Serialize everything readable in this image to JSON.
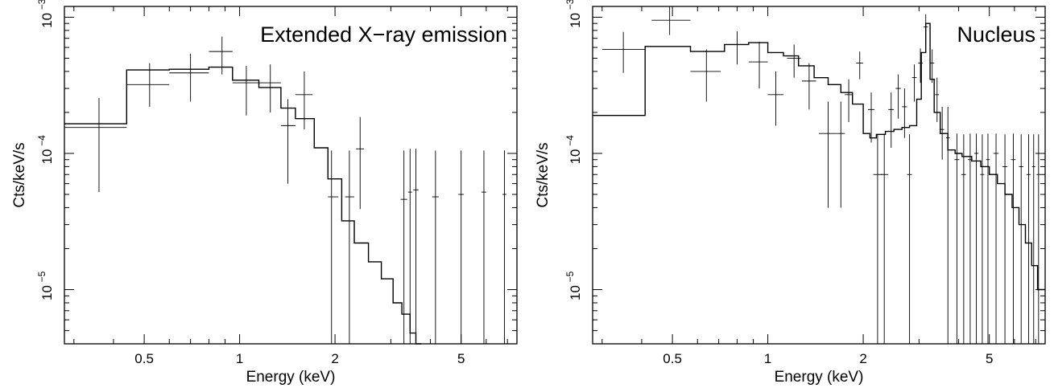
{
  "chart_data": [
    {
      "type": "line",
      "title": "Extended X−ray emission",
      "xlabel": "Energy (keV)",
      "ylabel": "Cts/keV/s",
      "xscale": "log",
      "yscale": "log",
      "xlim": [
        0.28,
        7.5
      ],
      "ylim": [
        4e-06,
        0.0012
      ],
      "xticks": [
        {
          "value": 0.5,
          "label": "0.5"
        },
        {
          "value": 1,
          "label": "1"
        },
        {
          "value": 2,
          "label": "2"
        },
        {
          "value": 5,
          "label": "5"
        }
      ],
      "yticks": [
        {
          "value": 1e-05,
          "base": "10",
          "exp": "−5"
        },
        {
          "value": 0.0001,
          "base": "10",
          "exp": "−4"
        },
        {
          "value": 0.001,
          "base": "10",
          "exp": "−3"
        }
      ],
      "series": [
        {
          "kind": "model-step",
          "edges": [
            0.28,
            0.44,
            0.6,
            0.8,
            0.95,
            1.15,
            1.35,
            1.5,
            1.72,
            1.9,
            2.1,
            2.3,
            2.55,
            2.8,
            3.05,
            3.25,
            3.45,
            3.6,
            3.75
          ],
          "values": [
            0.000165,
            0.00041,
            0.000415,
            0.00043,
            0.000345,
            0.000305,
            0.000215,
            0.00018,
            0.00011,
            6.5e-05,
            3.2e-05,
            2.2e-05,
            1.6e-05,
            1.2e-05,
            8e-06,
            6.6e-06,
            4.8e-06,
            3.5e-06
          ]
        },
        {
          "kind": "data-points",
          "points": [
            {
              "x": 0.36,
              "y": 0.000155,
              "xlo": 0.28,
              "xhi": 0.44,
              "ylo": 5.2e-05,
              "yhi": 0.000255
            },
            {
              "x": 0.52,
              "y": 0.00032,
              "xlo": 0.44,
              "xhi": 0.6,
              "ylo": 0.00022,
              "yhi": 0.00046
            },
            {
              "x": 0.7,
              "y": 0.00039,
              "xlo": 0.6,
              "xhi": 0.8,
              "ylo": 0.00024,
              "yhi": 0.00054
            },
            {
              "x": 0.88,
              "y": 0.00056,
              "xlo": 0.8,
              "xhi": 0.95,
              "ylo": 0.00038,
              "yhi": 0.00072
            },
            {
              "x": 1.05,
              "y": 0.00033,
              "xlo": 0.95,
              "xhi": 1.15,
              "ylo": 0.00019,
              "yhi": 0.00044
            },
            {
              "x": 1.25,
              "y": 0.00033,
              "xlo": 1.15,
              "xhi": 1.35,
              "ylo": 0.0002,
              "yhi": 0.00045
            },
            {
              "x": 1.42,
              "y": 0.00016,
              "xlo": 1.35,
              "xhi": 1.5,
              "ylo": 6e-05,
              "yhi": 0.00025
            },
            {
              "x": 1.6,
              "y": 0.00027,
              "xlo": 1.5,
              "xhi": 1.7,
              "ylo": 0.00015,
              "yhi": 0.0004
            },
            {
              "x": 1.95,
              "y": 4.8e-05,
              "xlo": 1.9,
              "xhi": 2.05,
              "ylo": 4e-06,
              "yhi": 0.000105
            },
            {
              "x": 2.22,
              "y": 4.8e-05,
              "xlo": 2.15,
              "xhi": 2.3,
              "ylo": 4e-06,
              "yhi": 0.000105
            },
            {
              "x": 2.4,
              "y": 0.000108,
              "xlo": 2.33,
              "xhi": 2.47,
              "ylo": 3.9e-05,
              "yhi": 0.000185
            },
            {
              "x": 3.3,
              "y": 4.6e-05,
              "xlo": 3.22,
              "xhi": 3.38,
              "ylo": 4e-06,
              "yhi": 0.000105
            },
            {
              "x": 3.45,
              "y": 5.2e-05,
              "xlo": 3.4,
              "xhi": 3.5,
              "ylo": 4e-06,
              "yhi": 0.000108
            },
            {
              "x": 3.6,
              "y": 5.4e-05,
              "xlo": 3.53,
              "xhi": 3.67,
              "ylo": 4e-06,
              "yhi": 0.000108
            },
            {
              "x": 4.15,
              "y": 4.8e-05,
              "xlo": 4.05,
              "xhi": 4.25,
              "ylo": 4e-06,
              "yhi": 0.000105
            },
            {
              "x": 5.0,
              "y": 5e-05,
              "xlo": 4.9,
              "xhi": 5.1,
              "ylo": 4e-06,
              "yhi": 0.000105
            },
            {
              "x": 5.9,
              "y": 5.2e-05,
              "xlo": 5.8,
              "xhi": 6.0,
              "ylo": 4e-06,
              "yhi": 0.000105
            },
            {
              "x": 6.85,
              "y": 5e-05,
              "xlo": 6.75,
              "xhi": 6.95,
              "ylo": 4e-06,
              "yhi": 0.000105
            }
          ]
        }
      ]
    },
    {
      "type": "line",
      "title": "Nucleus",
      "xlabel": "Energy (keV)",
      "ylabel": "Cts/keV/s",
      "xscale": "log",
      "yscale": "log",
      "xlim": [
        0.28,
        7.5
      ],
      "ylim": [
        4e-06,
        0.0012
      ],
      "xticks": [
        {
          "value": 0.5,
          "label": "0.5"
        },
        {
          "value": 1,
          "label": "1"
        },
        {
          "value": 2,
          "label": "2"
        },
        {
          "value": 5,
          "label": "5"
        }
      ],
      "yticks": [
        {
          "value": 1e-05,
          "base": "10",
          "exp": "−5"
        },
        {
          "value": 0.0001,
          "base": "10",
          "exp": "−4"
        },
        {
          "value": 0.001,
          "base": "10",
          "exp": "−3"
        }
      ],
      "series": [
        {
          "kind": "model-step",
          "edges": [
            0.28,
            0.41,
            0.57,
            0.73,
            0.87,
            1.0,
            1.12,
            1.25,
            1.4,
            1.55,
            1.7,
            1.85,
            2.0,
            2.1,
            2.2,
            2.35,
            2.5,
            2.65,
            2.8,
            2.95,
            3.05,
            3.15,
            3.25,
            3.35,
            3.5,
            3.7,
            3.9,
            4.1,
            4.4,
            4.7,
            5.0,
            5.3,
            5.6,
            5.9,
            6.2,
            6.5,
            6.8,
            7.1,
            7.5
          ],
          "values": [
            0.00019,
            0.00061,
            0.00056,
            0.00063,
            0.00065,
            0.00055,
            0.00052,
            0.00044,
            0.00036,
            0.00032,
            0.00028,
            0.00023,
            0.00014,
            0.00013,
            0.000138,
            0.000145,
            0.00015,
            0.000155,
            0.00016,
            0.00025,
            0.00055,
            0.0009,
            0.00035,
            0.0002,
            0.00014,
            0.000106,
            0.0001,
            9.5e-05,
            8.8e-05,
            8e-05,
            7e-05,
            6e-05,
            5e-05,
            4e-05,
            3e-05,
            2.2e-05,
            1.5e-05,
            1e-05
          ]
        },
        {
          "kind": "data-points",
          "points": [
            {
              "x": 0.35,
              "y": 0.00058,
              "xlo": 0.3,
              "xhi": 0.41,
              "ylo": 0.00039,
              "yhi": 0.00078
            },
            {
              "x": 0.49,
              "y": 0.00095,
              "xlo": 0.43,
              "xhi": 0.57,
              "ylo": 0.00074,
              "yhi": 0.0012
            },
            {
              "x": 0.64,
              "y": 0.0004,
              "xlo": 0.57,
              "xhi": 0.71,
              "ylo": 0.00024,
              "yhi": 0.00058
            },
            {
              "x": 0.8,
              "y": 0.00063,
              "xlo": 0.73,
              "xhi": 0.87,
              "ylo": 0.00045,
              "yhi": 0.00079
            },
            {
              "x": 0.94,
              "y": 0.00047,
              "xlo": 0.87,
              "xhi": 1.0,
              "ylo": 0.0003,
              "yhi": 0.00066
            },
            {
              "x": 1.06,
              "y": 0.00027,
              "xlo": 1.0,
              "xhi": 1.12,
              "ylo": 0.00016,
              "yhi": 0.0004
            },
            {
              "x": 1.21,
              "y": 0.0005,
              "xlo": 1.15,
              "xhi": 1.27,
              "ylo": 0.00036,
              "yhi": 0.00063
            },
            {
              "x": 1.35,
              "y": 0.00034,
              "xlo": 1.28,
              "xhi": 1.42,
              "ylo": 0.00021,
              "yhi": 0.00046
            },
            {
              "x": 1.55,
              "y": 0.00014,
              "xlo": 1.45,
              "xhi": 1.65,
              "ylo": 4e-05,
              "yhi": 0.00024
            },
            {
              "x": 1.7,
              "y": 0.00014,
              "xlo": 1.65,
              "xhi": 1.75,
              "ylo": 4e-05,
              "yhi": 0.00024
            },
            {
              "x": 1.8,
              "y": 0.00027,
              "xlo": 1.75,
              "xhi": 1.85,
              "ylo": 0.00017,
              "yhi": 0.00035
            },
            {
              "x": 1.95,
              "y": 0.00046,
              "xlo": 1.9,
              "xhi": 2.0,
              "ylo": 0.00035,
              "yhi": 0.00056
            },
            {
              "x": 2.12,
              "y": 0.00021,
              "xlo": 2.07,
              "xhi": 2.17,
              "ylo": 0.00012,
              "yhi": 0.00028
            },
            {
              "x": 2.22,
              "y": 7e-05,
              "xlo": 2.15,
              "xhi": 2.3,
              "ylo": 4e-06,
              "yhi": 0.000138
            },
            {
              "x": 2.33,
              "y": 7e-05,
              "xlo": 2.27,
              "xhi": 2.4,
              "ylo": 4e-06,
              "yhi": 0.000138
            },
            {
              "x": 2.45,
              "y": 0.00021,
              "xlo": 2.4,
              "xhi": 2.5,
              "ylo": 0.00011,
              "yhi": 0.00028
            },
            {
              "x": 2.58,
              "y": 0.0003,
              "xlo": 2.53,
              "xhi": 2.63,
              "ylo": 0.00018,
              "yhi": 0.00038
            },
            {
              "x": 2.7,
              "y": 0.00022,
              "xlo": 2.65,
              "xhi": 2.75,
              "ylo": 0.00013,
              "yhi": 0.0003
            },
            {
              "x": 2.8,
              "y": 7e-05,
              "xlo": 2.75,
              "xhi": 2.85,
              "ylo": 4e-06,
              "yhi": 0.000138
            },
            {
              "x": 2.9,
              "y": 0.00036,
              "xlo": 2.85,
              "xhi": 2.95,
              "ylo": 0.00024,
              "yhi": 0.00045
            },
            {
              "x": 3.03,
              "y": 0.00046,
              "xlo": 2.98,
              "xhi": 3.08,
              "ylo": 0.00033,
              "yhi": 0.00059
            },
            {
              "x": 3.15,
              "y": 0.00085,
              "xlo": 3.1,
              "xhi": 3.2,
              "ylo": 0.00064,
              "yhi": 0.00105
            },
            {
              "x": 3.3,
              "y": 0.00046,
              "xlo": 3.25,
              "xhi": 3.35,
              "ylo": 0.00033,
              "yhi": 0.00058
            },
            {
              "x": 3.42,
              "y": 0.00027,
              "xlo": 3.37,
              "xhi": 3.47,
              "ylo": 0.00017,
              "yhi": 0.00036
            },
            {
              "x": 3.55,
              "y": 0.00015,
              "xlo": 3.5,
              "xhi": 3.6,
              "ylo": 9e-05,
              "yhi": 0.00022
            },
            {
              "x": 3.7,
              "y": 0.00013,
              "xlo": 3.65,
              "xhi": 3.75,
              "ylo": 4e-06,
              "yhi": 0.00022
            },
            {
              "x": 3.95,
              "y": 9e-05,
              "xlo": 3.88,
              "xhi": 4.02,
              "ylo": 4e-06,
              "yhi": 0.00014
            },
            {
              "x": 4.15,
              "y": 7e-05,
              "xlo": 4.08,
              "xhi": 4.22,
              "ylo": 4e-06,
              "yhi": 0.000138
            },
            {
              "x": 4.35,
              "y": 9e-05,
              "xlo": 4.28,
              "xhi": 4.42,
              "ylo": 4e-06,
              "yhi": 0.00014
            },
            {
              "x": 4.55,
              "y": 0.0001,
              "xlo": 4.48,
              "xhi": 4.62,
              "ylo": 4e-06,
              "yhi": 0.00014
            },
            {
              "x": 4.75,
              "y": 7e-05,
              "xlo": 4.68,
              "xhi": 4.82,
              "ylo": 4e-06,
              "yhi": 0.000138
            },
            {
              "x": 4.95,
              "y": 9e-05,
              "xlo": 4.88,
              "xhi": 5.02,
              "ylo": 4e-06,
              "yhi": 0.00014
            },
            {
              "x": 5.25,
              "y": 0.0001,
              "xlo": 5.15,
              "xhi": 5.35,
              "ylo": 4e-06,
              "yhi": 0.00014
            },
            {
              "x": 5.6,
              "y": 8e-05,
              "xlo": 5.5,
              "xhi": 5.7,
              "ylo": 4e-06,
              "yhi": 0.000138
            },
            {
              "x": 5.95,
              "y": 9e-05,
              "xlo": 5.85,
              "xhi": 6.05,
              "ylo": 4e-06,
              "yhi": 0.00014
            },
            {
              "x": 6.3,
              "y": 8e-05,
              "xlo": 6.2,
              "xhi": 6.4,
              "ylo": 4e-06,
              "yhi": 0.000138
            },
            {
              "x": 6.65,
              "y": 7e-05,
              "xlo": 6.55,
              "xhi": 6.75,
              "ylo": 4e-06,
              "yhi": 0.000138
            },
            {
              "x": 6.9,
              "y": 8e-05,
              "xlo": 6.82,
              "xhi": 6.98,
              "ylo": 4e-06,
              "yhi": 0.000138
            },
            {
              "x": 7.15,
              "y": 7e-05,
              "xlo": 7.05,
              "xhi": 7.25,
              "ylo": 4e-06,
              "yhi": 0.000138
            }
          ]
        }
      ]
    }
  ]
}
